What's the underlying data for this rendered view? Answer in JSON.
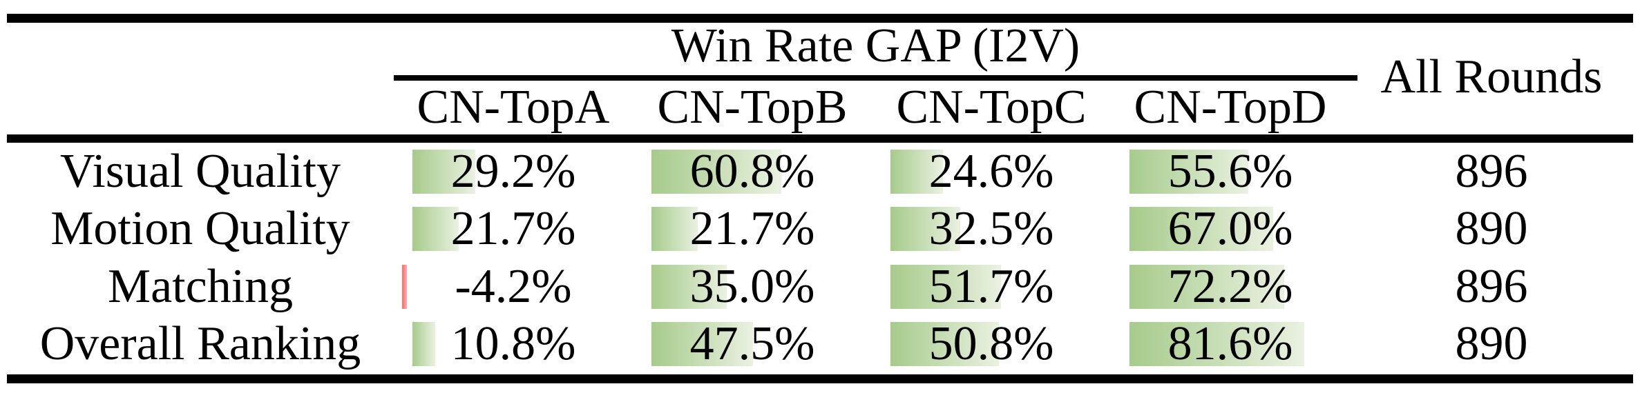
{
  "table": {
    "group_header": "Win Rate GAP (I2V)",
    "all_rounds_header": "All Rounds",
    "columns": [
      "CN-TopA",
      "CN-TopB",
      "CN-TopC",
      "CN-TopD"
    ],
    "rows": [
      {
        "label": "Visual Quality",
        "cells": [
          {
            "value": 29.2,
            "text": "29.2%"
          },
          {
            "value": 60.8,
            "text": "60.8%"
          },
          {
            "value": 24.6,
            "text": "24.6%"
          },
          {
            "value": 55.6,
            "text": "55.6%"
          }
        ],
        "all_rounds": "896"
      },
      {
        "label": "Motion Quality",
        "cells": [
          {
            "value": 21.7,
            "text": "21.7%"
          },
          {
            "value": 21.7,
            "text": "21.7%"
          },
          {
            "value": 32.5,
            "text": "32.5%"
          },
          {
            "value": 67.0,
            "text": "67.0%"
          }
        ],
        "all_rounds": "890"
      },
      {
        "label": "Matching",
        "cells": [
          {
            "value": -4.2,
            "text": "-4.2%"
          },
          {
            "value": 35.0,
            "text": "35.0%"
          },
          {
            "value": 51.7,
            "text": "51.7%"
          },
          {
            "value": 72.2,
            "text": "72.2%"
          }
        ],
        "all_rounds": "896"
      },
      {
        "label": "Overall Ranking",
        "cells": [
          {
            "value": 10.8,
            "text": "10.8%"
          },
          {
            "value": 47.5,
            "text": "47.5%"
          },
          {
            "value": 50.8,
            "text": "50.8%"
          },
          {
            "value": 81.6,
            "text": "81.6%"
          }
        ],
        "all_rounds": "890"
      }
    ],
    "colors": {
      "positive_bar_start": "#a6cb8b",
      "positive_bar_end": "#eaf1e1",
      "negative_bar_start": "#f76d6d",
      "negative_bar_end": "#fbadad",
      "rule": "#000000",
      "text": "#000000"
    }
  },
  "chart_data": {
    "type": "table",
    "title": "Win Rate GAP (I2V)",
    "categories": [
      "Visual Quality",
      "Motion Quality",
      "Matching",
      "Overall Ranking"
    ],
    "series": [
      {
        "name": "CN-TopA",
        "values": [
          29.2,
          21.7,
          -4.2,
          10.8
        ]
      },
      {
        "name": "CN-TopB",
        "values": [
          60.8,
          21.7,
          35.0,
          47.5
        ]
      },
      {
        "name": "CN-TopC",
        "values": [
          24.6,
          32.5,
          51.7,
          50.8
        ]
      },
      {
        "name": "CN-TopD",
        "values": [
          55.6,
          67.0,
          72.2,
          81.6
        ]
      }
    ],
    "all_rounds": [
      896,
      890,
      896,
      890
    ],
    "units": "percent",
    "bar_style": "in-cell gradient data bars, green for positive, red for negative"
  }
}
